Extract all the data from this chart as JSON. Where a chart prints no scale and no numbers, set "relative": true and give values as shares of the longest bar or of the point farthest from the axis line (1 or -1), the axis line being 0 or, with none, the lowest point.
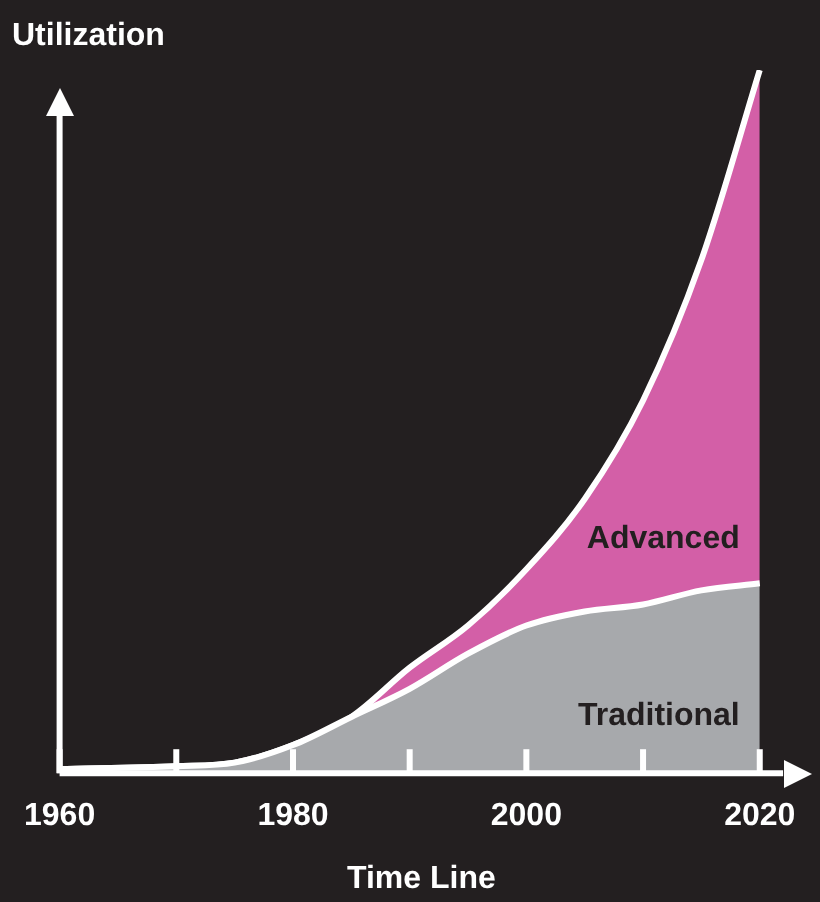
{
  "chart_data": {
    "type": "area",
    "relative": true,
    "stacked": true,
    "ylabel": "Utilization",
    "xlabel": "Time Line",
    "x": [
      1960,
      1970,
      1975,
      1980,
      1985,
      1990,
      1995,
      2000,
      2005,
      2010,
      2015,
      2020
    ],
    "xlim": [
      1960,
      2022
    ],
    "xticks": [
      1960,
      {
        "value": 1970,
        "label": null
      },
      1980,
      {
        "value": 1990,
        "label": null
      },
      2000,
      {
        "value": 2010,
        "label": null
      },
      2020
    ],
    "series": [
      {
        "name": "Traditional",
        "color": "#a7a9ac",
        "values": [
          0.006,
          0.01,
          0.015,
          0.04,
          0.08,
          0.12,
          0.17,
          0.21,
          0.23,
          0.24,
          0.26,
          0.27
        ]
      },
      {
        "name": "Advanced",
        "color": "#d35fa7",
        "values": [
          0,
          0,
          0,
          0,
          0,
          0.03,
          0.04,
          0.08,
          0.16,
          0.29,
          0.47,
          0.73
        ]
      }
    ],
    "legend": false
  }
}
